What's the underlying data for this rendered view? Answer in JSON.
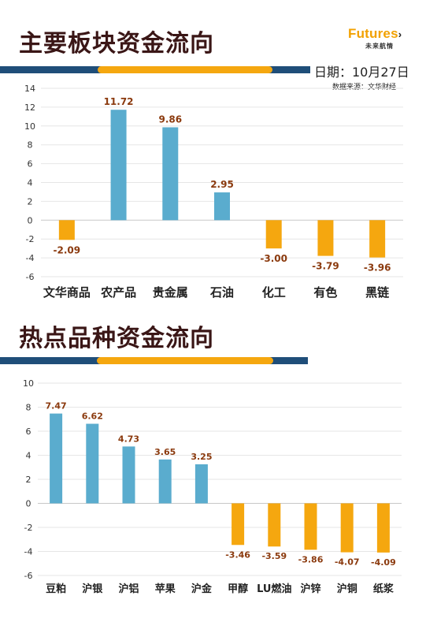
{
  "section1": {
    "title": "主要板块资金流向"
  },
  "section2": {
    "title": "热点品种资金流向"
  },
  "logo": {
    "brand": "Futures",
    "mark": "›",
    "sub": "未来航情"
  },
  "date_text": "日期：10月27日",
  "source_text": "数据来源：文华财经",
  "colors": {
    "positive": "#5aacce",
    "negative": "#f5a70f",
    "band": "#1f4e79",
    "accent": "#f5a70f"
  },
  "chart_data": [
    {
      "type": "bar",
      "title": "主要板块资金流向",
      "categories": [
        "文华商品",
        "农产品",
        "贵金属",
        "石油",
        "化工",
        "有色",
        "黑链"
      ],
      "values": [
        -2.09,
        11.72,
        9.86,
        2.95,
        -3.0,
        -3.79,
        -3.96
      ],
      "value_labels": [
        "-2.09",
        "11.72",
        "9.86",
        "2.95",
        "-3.00",
        "-3.79",
        "-3.96"
      ],
      "yticks": [
        "14",
        "12",
        "10",
        "8",
        "6",
        "4",
        "2",
        "0",
        "-2",
        "-4",
        "-6"
      ],
      "ylim": [
        -6,
        14
      ],
      "grid": true,
      "legend": "none"
    },
    {
      "type": "bar",
      "title": "热点品种资金流向",
      "categories": [
        "豆粕",
        "沪银",
        "沪铝",
        "苹果",
        "沪金",
        "甲醇",
        "LU燃油",
        "沪锌",
        "沪铜",
        "纸浆"
      ],
      "values": [
        7.47,
        6.62,
        4.73,
        3.65,
        3.25,
        -3.46,
        -3.59,
        -3.86,
        -4.07,
        -4.09
      ],
      "value_labels": [
        "7.47",
        "6.62",
        "4.73",
        "3.65",
        "3.25",
        "-3.46",
        "-3.59",
        "-3.86",
        "-4.07",
        "-4.09"
      ],
      "yticks": [
        "10",
        "8",
        "6",
        "4",
        "2",
        "0",
        "-2",
        "-4",
        "-6"
      ],
      "ylim": [
        -6,
        10
      ],
      "grid": true,
      "legend": "none"
    }
  ]
}
